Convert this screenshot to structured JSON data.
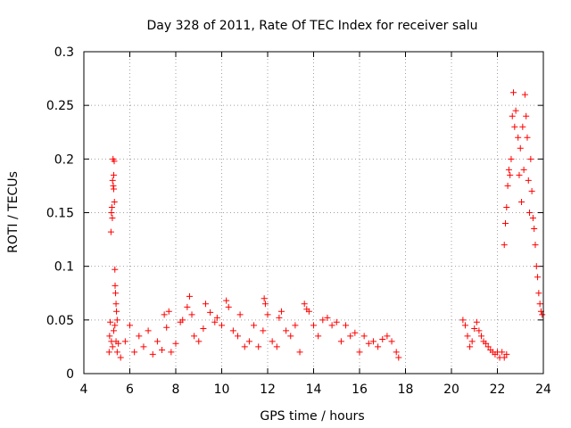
{
  "chart_data": {
    "type": "scatter",
    "title": "Day 328 of 2011, Rate Of TEC Index for receiver salu",
    "xlabel": "GPS time / hours",
    "ylabel": "ROTI / TECUs",
    "xlim": [
      4,
      24
    ],
    "ylim": [
      0,
      0.3
    ],
    "xticks": [
      4,
      6,
      8,
      10,
      12,
      14,
      16,
      18,
      20,
      22,
      24
    ],
    "yticks": [
      0,
      0.05,
      0.1,
      0.15,
      0.2,
      0.25,
      0.3
    ],
    "xtick_labels": [
      "4",
      "6",
      "8",
      "10",
      "12",
      "14",
      "16",
      "18",
      "20",
      "22",
      "24"
    ],
    "ytick_labels": [
      "0",
      "0.05",
      "0.1",
      "0.15",
      "0.2",
      "0.25",
      "0.3"
    ],
    "grid": true,
    "marker": "+",
    "color": "#ff0000",
    "series": [
      {
        "name": "ROTI",
        "points": [
          [
            5.1,
            0.02
          ],
          [
            5.12,
            0.035
          ],
          [
            5.15,
            0.048
          ],
          [
            5.18,
            0.132
          ],
          [
            5.2,
            0.15
          ],
          [
            5.22,
            0.155
          ],
          [
            5.24,
            0.145
          ],
          [
            5.25,
            0.18
          ],
          [
            5.27,
            0.2
          ],
          [
            5.28,
            0.175
          ],
          [
            5.3,
            0.185
          ],
          [
            5.3,
            0.172
          ],
          [
            5.32,
            0.198
          ],
          [
            5.33,
            0.16
          ],
          [
            5.35,
            0.097
          ],
          [
            5.36,
            0.082
          ],
          [
            5.38,
            0.075
          ],
          [
            5.4,
            0.065
          ],
          [
            5.42,
            0.058
          ],
          [
            5.45,
            0.05
          ],
          [
            5.2,
            0.03
          ],
          [
            5.25,
            0.025
          ],
          [
            5.3,
            0.04
          ],
          [
            5.35,
            0.045
          ],
          [
            5.4,
            0.03
          ],
          [
            5.45,
            0.02
          ],
          [
            5.5,
            0.028
          ],
          [
            5.6,
            0.015
          ],
          [
            5.8,
            0.03
          ],
          [
            6.0,
            0.045
          ],
          [
            6.2,
            0.02
          ],
          [
            6.4,
            0.035
          ],
          [
            6.6,
            0.025
          ],
          [
            6.8,
            0.04
          ],
          [
            7.0,
            0.018
          ],
          [
            7.2,
            0.03
          ],
          [
            7.4,
            0.022
          ],
          [
            7.5,
            0.055
          ],
          [
            7.6,
            0.043
          ],
          [
            7.7,
            0.058
          ],
          [
            7.8,
            0.02
          ],
          [
            8.0,
            0.028
          ],
          [
            8.2,
            0.048
          ],
          [
            8.3,
            0.05
          ],
          [
            8.5,
            0.062
          ],
          [
            8.6,
            0.072
          ],
          [
            8.7,
            0.055
          ],
          [
            8.8,
            0.035
          ],
          [
            9.0,
            0.03
          ],
          [
            9.2,
            0.042
          ],
          [
            9.3,
            0.065
          ],
          [
            9.5,
            0.057
          ],
          [
            9.7,
            0.048
          ],
          [
            9.8,
            0.052
          ],
          [
            10.0,
            0.045
          ],
          [
            10.2,
            0.068
          ],
          [
            10.3,
            0.062
          ],
          [
            10.5,
            0.04
          ],
          [
            10.7,
            0.035
          ],
          [
            10.8,
            0.055
          ],
          [
            11.0,
            0.025
          ],
          [
            11.2,
            0.03
          ],
          [
            11.4,
            0.045
          ],
          [
            11.6,
            0.025
          ],
          [
            11.8,
            0.04
          ],
          [
            11.85,
            0.07
          ],
          [
            11.9,
            0.065
          ],
          [
            12.0,
            0.055
          ],
          [
            12.2,
            0.03
          ],
          [
            12.4,
            0.025
          ],
          [
            12.5,
            0.052
          ],
          [
            12.6,
            0.058
          ],
          [
            12.8,
            0.04
          ],
          [
            13.0,
            0.035
          ],
          [
            13.2,
            0.045
          ],
          [
            13.4,
            0.02
          ],
          [
            13.6,
            0.065
          ],
          [
            13.7,
            0.06
          ],
          [
            13.8,
            0.058
          ],
          [
            14.0,
            0.045
          ],
          [
            14.2,
            0.035
          ],
          [
            14.4,
            0.05
          ],
          [
            14.6,
            0.052
          ],
          [
            14.8,
            0.045
          ],
          [
            15.0,
            0.048
          ],
          [
            15.2,
            0.03
          ],
          [
            15.4,
            0.045
          ],
          [
            15.6,
            0.035
          ],
          [
            15.8,
            0.038
          ],
          [
            16.0,
            0.02
          ],
          [
            16.2,
            0.035
          ],
          [
            16.4,
            0.028
          ],
          [
            16.6,
            0.03
          ],
          [
            16.8,
            0.025
          ],
          [
            17.0,
            0.032
          ],
          [
            17.2,
            0.035
          ],
          [
            17.4,
            0.03
          ],
          [
            17.6,
            0.02
          ],
          [
            17.7,
            0.015
          ],
          [
            20.5,
            0.05
          ],
          [
            20.6,
            0.045
          ],
          [
            20.7,
            0.035
          ],
          [
            20.8,
            0.025
          ],
          [
            20.9,
            0.03
          ],
          [
            21.0,
            0.042
          ],
          [
            21.1,
            0.048
          ],
          [
            21.2,
            0.04
          ],
          [
            21.3,
            0.035
          ],
          [
            21.4,
            0.03
          ],
          [
            21.5,
            0.028
          ],
          [
            21.6,
            0.025
          ],
          [
            21.7,
            0.022
          ],
          [
            21.8,
            0.02
          ],
          [
            21.9,
            0.018
          ],
          [
            22.0,
            0.02
          ],
          [
            22.1,
            0.015
          ],
          [
            22.2,
            0.02
          ],
          [
            22.3,
            0.015
          ],
          [
            22.4,
            0.018
          ],
          [
            22.3,
            0.12
          ],
          [
            22.35,
            0.14
          ],
          [
            22.4,
            0.155
          ],
          [
            22.45,
            0.175
          ],
          [
            22.5,
            0.19
          ],
          [
            22.55,
            0.185
          ],
          [
            22.6,
            0.2
          ],
          [
            22.65,
            0.24
          ],
          [
            22.7,
            0.262
          ],
          [
            22.75,
            0.23
          ],
          [
            22.8,
            0.245
          ],
          [
            22.9,
            0.22
          ],
          [
            22.95,
            0.185
          ],
          [
            23.0,
            0.21
          ],
          [
            23.05,
            0.16
          ],
          [
            23.1,
            0.23
          ],
          [
            23.15,
            0.19
          ],
          [
            23.2,
            0.26
          ],
          [
            23.25,
            0.24
          ],
          [
            23.3,
            0.22
          ],
          [
            23.35,
            0.18
          ],
          [
            23.4,
            0.15
          ],
          [
            23.45,
            0.2
          ],
          [
            23.5,
            0.17
          ],
          [
            23.55,
            0.145
          ],
          [
            23.6,
            0.135
          ],
          [
            23.65,
            0.12
          ],
          [
            23.7,
            0.1
          ],
          [
            23.75,
            0.09
          ],
          [
            23.8,
            0.075
          ],
          [
            23.85,
            0.065
          ],
          [
            23.9,
            0.058
          ],
          [
            23.95,
            0.055
          ]
        ]
      }
    ]
  }
}
